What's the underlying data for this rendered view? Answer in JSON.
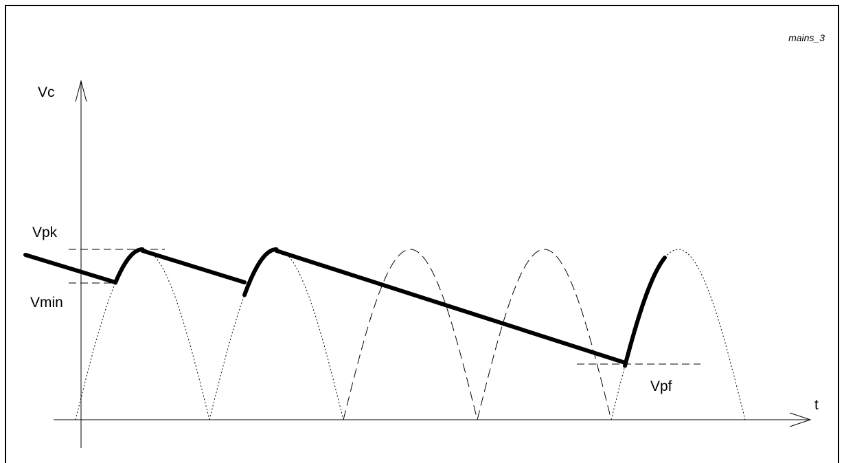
{
  "figure_id": "mains_3",
  "axes": {
    "y_label": "Vc",
    "x_label": "t"
  },
  "levels": {
    "peak": "Vpk",
    "minimum": "Vmin",
    "final": "Vpf"
  },
  "colors": {
    "ink": "#000000",
    "background": "#ffffff"
  }
}
